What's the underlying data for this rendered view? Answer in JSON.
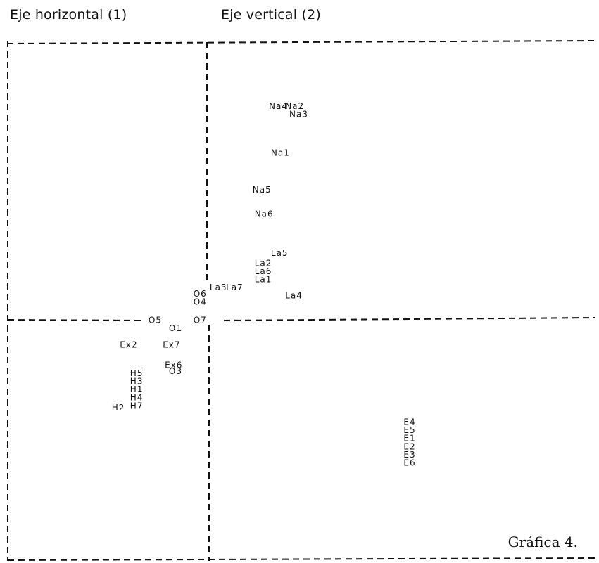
{
  "header": {
    "x_axis_title": "Eje horizontal (1)",
    "y_axis_title": "Eje vertical (2)"
  },
  "caption": "Gráfica 4.",
  "chart_data": {
    "type": "scatter",
    "xlabel": "Eje horizontal (1)",
    "ylabel": "Eje vertical (2)",
    "xlim": [
      -1.0,
      2.0
    ],
    "ylim": [
      -1.1,
      1.35
    ],
    "grid": false,
    "points": [
      {
        "label": "Na4",
        "x": 0.3,
        "y": 1.05
      },
      {
        "label": "Na2",
        "x": 0.38,
        "y": 1.05
      },
      {
        "label": "Na3",
        "x": 0.4,
        "y": 1.01
      },
      {
        "label": "Na1",
        "x": 0.31,
        "y": 0.82
      },
      {
        "label": "Na5",
        "x": 0.22,
        "y": 0.64
      },
      {
        "label": "Na6",
        "x": 0.23,
        "y": 0.52
      },
      {
        "label": "La5",
        "x": 0.31,
        "y": 0.33
      },
      {
        "label": "La2",
        "x": 0.23,
        "y": 0.28
      },
      {
        "label": "La6",
        "x": 0.23,
        "y": 0.24
      },
      {
        "label": "La1",
        "x": 0.23,
        "y": 0.2
      },
      {
        "label": "La3",
        "x": 0.01,
        "y": 0.16
      },
      {
        "label": "La7",
        "x": 0.09,
        "y": 0.16
      },
      {
        "label": "La4",
        "x": 0.38,
        "y": 0.12
      },
      {
        "label": "O6",
        "x": -0.07,
        "y": 0.13
      },
      {
        "label": "O4",
        "x": -0.07,
        "y": 0.09
      },
      {
        "label": "O5",
        "x": -0.29,
        "y": 0.0
      },
      {
        "label": "O7",
        "x": -0.07,
        "y": 0.0
      },
      {
        "label": "O1",
        "x": -0.19,
        "y": -0.04
      },
      {
        "label": "Ex2",
        "x": -0.43,
        "y": -0.12
      },
      {
        "label": "Ex7",
        "x": -0.22,
        "y": -0.12
      },
      {
        "label": "Ex6",
        "x": -0.21,
        "y": -0.22
      },
      {
        "label": "O3",
        "x": -0.19,
        "y": -0.25
      },
      {
        "label": "H5",
        "x": -0.38,
        "y": -0.26
      },
      {
        "label": "H3",
        "x": -0.38,
        "y": -0.3
      },
      {
        "label": "H1",
        "x": -0.38,
        "y": -0.34
      },
      {
        "label": "H4",
        "x": -0.38,
        "y": -0.38
      },
      {
        "label": "H7",
        "x": -0.38,
        "y": -0.42
      },
      {
        "label": "H2",
        "x": -0.47,
        "y": -0.43
      },
      {
        "label": "E4",
        "x": 0.96,
        "y": -0.5
      },
      {
        "label": "E5",
        "x": 0.96,
        "y": -0.54
      },
      {
        "label": "E1",
        "x": 0.96,
        "y": -0.58
      },
      {
        "label": "E2",
        "x": 0.96,
        "y": -0.62
      },
      {
        "label": "E3",
        "x": 0.96,
        "y": -0.66
      },
      {
        "label": "E6",
        "x": 0.96,
        "y": -0.7
      }
    ]
  }
}
